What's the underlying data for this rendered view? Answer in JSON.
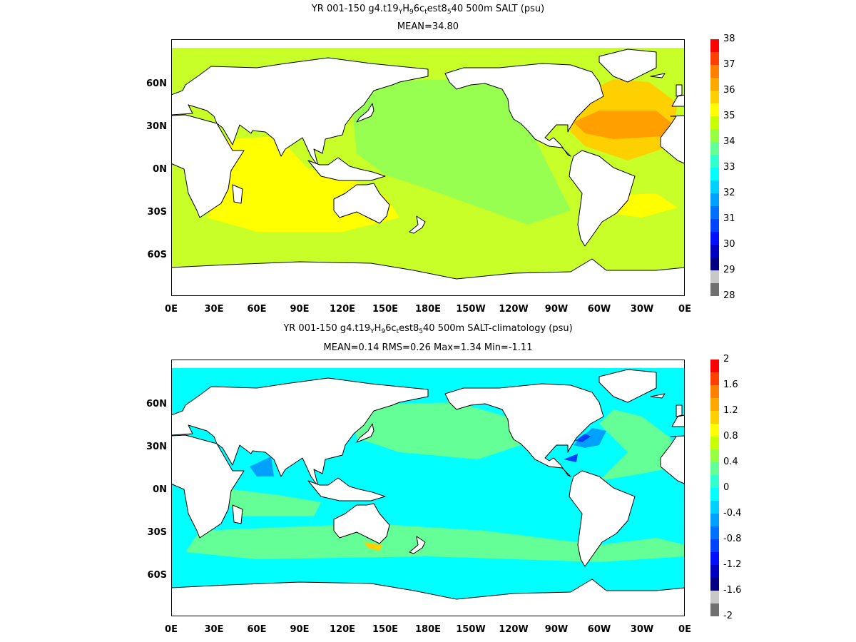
{
  "panel1": {
    "title_parts": [
      "YR 001-150 g4.t19",
      "Y",
      "H",
      "9",
      "6c",
      "t",
      "est8",
      "5",
      "40 500m SALT (psu)"
    ],
    "subtitle": "MEAN=34.80",
    "colorbar": {
      "labels": [
        "38",
        "37",
        "36",
        "35",
        "34",
        "33",
        "32",
        "31",
        "30",
        "29",
        "28"
      ],
      "colors": [
        "#ff0000",
        "#ff4000",
        "#ff8000",
        "#ffa800",
        "#ffd000",
        "#ffff00",
        "#c8ff00",
        "#96ff40",
        "#64ff96",
        "#30ffd0",
        "#00ffff",
        "#00d0ff",
        "#00a0ff",
        "#0070ff",
        "#0040ff",
        "#0010ff",
        "#0000c0",
        "#000080",
        "#c8c8c8",
        "#707070"
      ]
    }
  },
  "panel2": {
    "title_parts": [
      "YR 001-150 g4.t19",
      "Y",
      "H",
      "9",
      "6c",
      "t",
      "est8",
      "5",
      "40 500m SALT-climatology (psu)"
    ],
    "subtitle": "MEAN=0.14   RMS=0.26   Max=1.34   Min=-1.11",
    "colorbar": {
      "labels": [
        "2",
        "1.6",
        "1.2",
        "0.8",
        "0.4",
        "0",
        "-0.4",
        "-0.8",
        "-1.2",
        "-1.6",
        "-2"
      ],
      "colors": [
        "#ff0000",
        "#ff4000",
        "#ff8000",
        "#ffa800",
        "#ffd000",
        "#ffff00",
        "#c8ff00",
        "#96ff40",
        "#64ff96",
        "#30ffd0",
        "#00ffff",
        "#00d0ff",
        "#00a0ff",
        "#0070ff",
        "#0040ff",
        "#0010ff",
        "#0000c0",
        "#000080",
        "#c8c8c8",
        "#707070"
      ]
    }
  },
  "lon_labels": [
    "0E",
    "30E",
    "60E",
    "90E",
    "120E",
    "150E",
    "180E",
    "150W",
    "120W",
    "90W",
    "60W",
    "30W",
    "0E"
  ],
  "lat_labels": [
    "60N",
    "30N",
    "0N",
    "30S",
    "60S"
  ],
  "colors": {
    "land": "#ffffff",
    "coast": "#000000",
    "salt_base": "#c8ff28",
    "salt_pacific": "#96ff50",
    "salt_high": "#ffff00",
    "salt_atlantic": "#ffd000",
    "salt_max": "#ffa000",
    "anom_base": "#00ffff",
    "anom_pos": "#64ff96",
    "anom_neg": "#00a0ff",
    "anom_strong_neg": "#0040ff",
    "anom_yellow": "#ffd000"
  }
}
